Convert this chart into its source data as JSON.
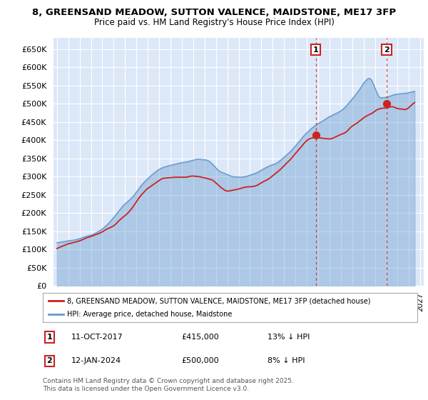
{
  "title_line1": "8, GREENSAND MEADOW, SUTTON VALENCE, MAIDSTONE, ME17 3FP",
  "title_line2": "Price paid vs. HM Land Registry's House Price Index (HPI)",
  "ylim": [
    0,
    680000
  ],
  "yticks": [
    0,
    50000,
    100000,
    150000,
    200000,
    250000,
    300000,
    350000,
    400000,
    450000,
    500000,
    550000,
    600000,
    650000
  ],
  "ytick_labels": [
    "£0",
    "£50K",
    "£100K",
    "£150K",
    "£200K",
    "£250K",
    "£300K",
    "£350K",
    "£400K",
    "£450K",
    "£500K",
    "£550K",
    "£600K",
    "£650K"
  ],
  "xlim_start": 1994.7,
  "xlim_end": 2027.3,
  "hpi_color": "#6699cc",
  "price_color": "#cc2222",
  "marker1_x": 2017.79,
  "marker1_y": 415000,
  "marker2_x": 2024.04,
  "marker2_y": 500000,
  "annotation1_date": "11-OCT-2017",
  "annotation1_price": "£415,000",
  "annotation1_pct": "13% ↓ HPI",
  "annotation2_date": "12-JAN-2024",
  "annotation2_price": "£500,000",
  "annotation2_pct": "8% ↓ HPI",
  "legend_label1": "8, GREENSAND MEADOW, SUTTON VALENCE, MAIDSTONE, ME17 3FP (detached house)",
  "legend_label2": "HPI: Average price, detached house, Maidstone",
  "footnote": "Contains HM Land Registry data © Crown copyright and database right 2025.\nThis data is licensed under the Open Government Licence v3.0.",
  "background_color": "#dce8f8",
  "grid_color": "#ffffff"
}
